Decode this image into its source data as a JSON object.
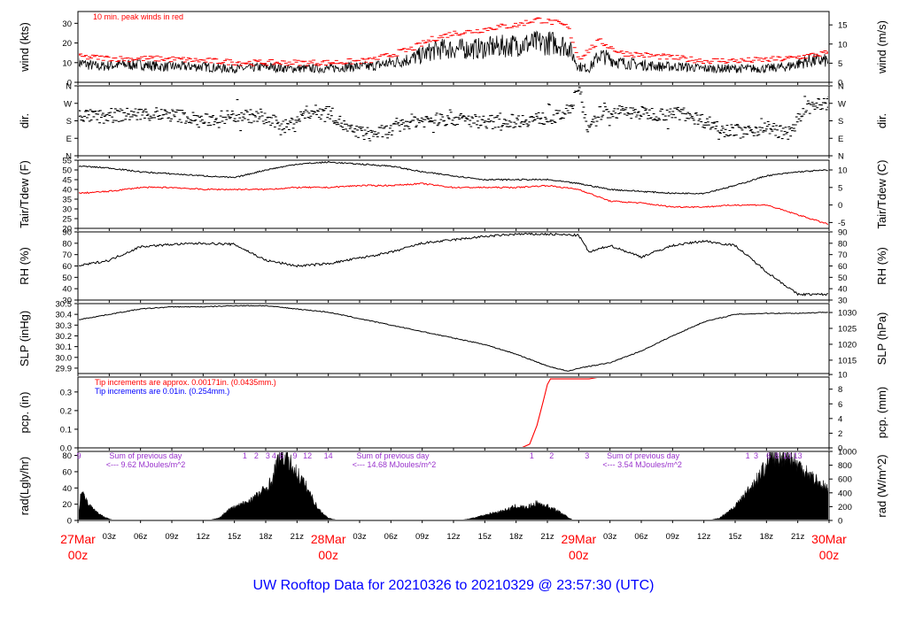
{
  "title": "UW Rooftop Data for 20210326  to  20210329 @ 23:57:30  (UTC)",
  "colors": {
    "black": "#000000",
    "red": "#ff0000",
    "blue": "#0000ff",
    "purple": "#9932cc"
  },
  "x_axis": {
    "hours": [
      0,
      3,
      6,
      9,
      12,
      15,
      18,
      21,
      24,
      27,
      30,
      33,
      36,
      39,
      42,
      45,
      48,
      51,
      54,
      57,
      60,
      63,
      66,
      69,
      72
    ],
    "labels": [
      "",
      "03z",
      "06z",
      "09z",
      "12z",
      "15z",
      "18z",
      "21z",
      "",
      "03z",
      "06z",
      "09z",
      "12z",
      "15z",
      "18z",
      "21z",
      "",
      "03z",
      "06z",
      "09z",
      "12z",
      "15z",
      "18z",
      "21z",
      ""
    ],
    "day_labels": [
      {
        "hour": 0,
        "day": "27Mar",
        "time": "00z"
      },
      {
        "hour": 24,
        "day": "28Mar",
        "time": "00z"
      },
      {
        "hour": 48,
        "day": "29Mar",
        "time": "00z"
      },
      {
        "hour": 72,
        "day": "30Mar",
        "time": "00z"
      }
    ],
    "range": [
      0,
      72
    ]
  },
  "chart_data": [
    {
      "id": "wind",
      "type": "line",
      "ylabel": "wind (kts)",
      "ylabel_right": "wind (m/s)",
      "ylim": [
        0,
        36
      ],
      "yticks": [
        0,
        10,
        20,
        30
      ],
      "right_ylim": [
        0,
        18.5
      ],
      "right_yticks": [
        0,
        5,
        10,
        15
      ],
      "note": "10 min. peak winds in red",
      "series": [
        {
          "name": "wind",
          "color": "#000000",
          "x": [
            0,
            2,
            4,
            6,
            8,
            10,
            12,
            14,
            16,
            18,
            20,
            22,
            24,
            26,
            28,
            30,
            32,
            34,
            35,
            36,
            38,
            40,
            42,
            44,
            46,
            47,
            48,
            49,
            50,
            52,
            54,
            56,
            58,
            60,
            62,
            64,
            66,
            68,
            70,
            72
          ],
          "y": [
            10,
            8,
            9,
            9,
            8,
            8,
            8,
            7,
            7,
            8,
            7,
            7,
            7,
            8,
            8,
            10,
            12,
            16,
            17,
            17,
            17,
            18,
            19,
            20,
            20,
            18,
            8,
            7,
            14,
            10,
            9,
            8,
            8,
            7,
            7,
            7,
            7,
            8,
            11,
            11
          ]
        },
        {
          "name": "10 min. peak winds",
          "color": "#ff0000",
          "x": [
            0,
            4,
            8,
            12,
            16,
            20,
            24,
            28,
            30,
            32,
            34,
            36,
            38,
            40,
            42,
            44,
            46,
            47,
            48,
            50,
            52,
            56,
            60,
            64,
            68,
            72
          ],
          "y": [
            13,
            12,
            12,
            11,
            10,
            10,
            10,
            11,
            14,
            17,
            22,
            25,
            26,
            28,
            29,
            32,
            30,
            28,
            12,
            21,
            15,
            13,
            11,
            11,
            12,
            15
          ]
        }
      ]
    },
    {
      "id": "dir",
      "type": "scatter",
      "ylabel": "dir.",
      "ylabel_right": "dir.",
      "ylim": [
        0,
        360
      ],
      "yticks": [
        0,
        90,
        180,
        270,
        360
      ],
      "ytick_labels": [
        "N",
        "E",
        "S",
        "W",
        "N"
      ],
      "series": [
        {
          "name": "dir",
          "color": "#000000",
          "x": [
            0,
            2,
            4,
            6,
            8,
            10,
            12,
            14,
            16,
            18,
            20,
            22,
            24,
            26,
            28,
            30,
            32,
            34,
            36,
            38,
            40,
            42,
            44,
            46,
            47,
            48,
            49,
            50,
            52,
            54,
            56,
            58,
            60,
            62,
            64,
            66,
            68,
            70,
            72
          ],
          "y": [
            210,
            200,
            210,
            215,
            210,
            205,
            180,
            200,
            210,
            190,
            150,
            225,
            230,
            130,
            110,
            130,
            180,
            185,
            190,
            180,
            175,
            180,
            190,
            200,
            230,
            350,
            120,
            220,
            225,
            220,
            215,
            220,
            180,
            140,
            120,
            150,
            110,
            250,
            270
          ]
        }
      ]
    },
    {
      "id": "temp",
      "type": "line",
      "ylabel": "Tair/Tdew (F)",
      "ylabel_right": "Tair/Tdew (C)",
      "ylim": [
        20,
        55
      ],
      "yticks": [
        20,
        25,
        30,
        35,
        40,
        45,
        50,
        55
      ],
      "right_ylim": [
        -6.67,
        12.78
      ],
      "right_yticks": [
        -5,
        0,
        5,
        10
      ],
      "series": [
        {
          "name": "Tair",
          "color": "#000000",
          "x": [
            0,
            3,
            6,
            9,
            12,
            15,
            18,
            21,
            24,
            27,
            30,
            33,
            36,
            39,
            42,
            45,
            48,
            51,
            54,
            57,
            60,
            63,
            66,
            69,
            72
          ],
          "y": [
            52,
            51,
            49,
            48,
            47,
            46,
            50,
            53,
            54,
            53,
            52,
            49,
            47,
            45,
            45,
            45,
            43,
            40,
            39,
            38,
            38,
            42,
            47,
            49,
            50
          ]
        },
        {
          "name": "Tdew",
          "color": "#ff0000",
          "x": [
            0,
            3,
            6,
            9,
            12,
            15,
            18,
            21,
            24,
            27,
            30,
            33,
            36,
            39,
            42,
            45,
            48,
            51,
            54,
            57,
            60,
            63,
            66,
            69,
            72
          ],
          "y": [
            38,
            39,
            41,
            41,
            40,
            40,
            40,
            41,
            41,
            42,
            42,
            43,
            41,
            41,
            41,
            42,
            40,
            34,
            33,
            31,
            31,
            32,
            32,
            27,
            22
          ]
        }
      ]
    },
    {
      "id": "rh",
      "type": "line",
      "ylabel": "RH (%)",
      "ylabel_right": "RH (%)",
      "ylim": [
        30,
        90
      ],
      "yticks": [
        30,
        40,
        50,
        60,
        70,
        80,
        90
      ],
      "series": [
        {
          "name": "RH",
          "color": "#000000",
          "x": [
            0,
            3,
            6,
            9,
            12,
            15,
            18,
            21,
            24,
            27,
            30,
            33,
            36,
            39,
            42,
            45,
            48,
            49,
            51,
            54,
            57,
            60,
            63,
            66,
            69,
            72
          ],
          "y": [
            60,
            65,
            77,
            79,
            80,
            79,
            65,
            60,
            62,
            67,
            72,
            80,
            83,
            86,
            88,
            88,
            87,
            72,
            78,
            68,
            78,
            82,
            78,
            55,
            35,
            35
          ]
        }
      ]
    },
    {
      "id": "slp",
      "type": "line",
      "ylabel": "SLP (inHg)",
      "ylabel_right": "SLP (hPa)",
      "ylim": [
        29.85,
        30.5
      ],
      "yticks": [
        29.9,
        30.0,
        30.1,
        30.2,
        30.3,
        30.4,
        30.5
      ],
      "ytick_labels": [
        "29.9",
        "30.0",
        "30.1",
        "30.2",
        "30.3",
        "30.4",
        "30.5"
      ],
      "right_ylim": [
        1010.8,
        1032.8
      ],
      "right_yticks": [
        1015,
        1020,
        1025,
        1030
      ],
      "series": [
        {
          "name": "SLP",
          "color": "#000000",
          "x": [
            0,
            3,
            6,
            9,
            12,
            15,
            18,
            21,
            24,
            27,
            30,
            33,
            36,
            39,
            42,
            45,
            47,
            48,
            51,
            54,
            57,
            60,
            63,
            66,
            69,
            72
          ],
          "y": [
            30.35,
            30.4,
            30.45,
            30.47,
            30.47,
            30.48,
            30.48,
            30.45,
            30.42,
            30.36,
            30.3,
            30.24,
            30.18,
            30.12,
            30.03,
            29.92,
            29.87,
            29.9,
            29.95,
            30.06,
            30.2,
            30.33,
            30.4,
            30.41,
            30.41,
            30.42
          ]
        }
      ]
    },
    {
      "id": "pcp",
      "type": "line",
      "ylabel": "pcp. (in)",
      "ylabel_right": "pcp. (mm)",
      "ylim": [
        0,
        0.38
      ],
      "yticks": [
        0.0,
        0.1,
        0.2,
        0.3
      ],
      "ytick_labels": [
        "0.0",
        "0.1",
        "0.2",
        "0.3"
      ],
      "right_ylim": [
        0,
        9.65
      ],
      "right_yticks": [
        0,
        2,
        4,
        6,
        8,
        10
      ],
      "note_red": "Tip increments are approx. 0.00171in. (0.0435mm.)",
      "note_blue": "Tip increments are 0.01in. (0.254mm.)",
      "series": [
        {
          "name": "pcp",
          "color": "#ff0000",
          "x": [
            0,
            42.5,
            43.3,
            44,
            44.6,
            45,
            45.3,
            49,
            50,
            72
          ],
          "y": [
            0,
            0,
            0.02,
            0.12,
            0.25,
            0.34,
            0.37,
            0.37,
            0.38,
            0.38
          ]
        }
      ]
    },
    {
      "id": "rad",
      "type": "area",
      "ylabel": "rad(Lgly/hr)",
      "ylabel_right": "rad (W/m^2)",
      "ylim": [
        0,
        85
      ],
      "yticks": [
        0,
        20,
        40,
        60,
        80
      ],
      "right_ylim": [
        0,
        1000
      ],
      "right_yticks": [
        0,
        200,
        400,
        600,
        800,
        1000
      ],
      "series": [
        {
          "name": "rad",
          "color": "#000000",
          "x": [
            0,
            0.3,
            1,
            2,
            3,
            3.5,
            12.5,
            13.5,
            14.5,
            16,
            17,
            18,
            18.7,
            19,
            19.5,
            20,
            21,
            22,
            23,
            24,
            25,
            26,
            36.5,
            37.5,
            39,
            41,
            42,
            43,
            44,
            45,
            46,
            47,
            47.5,
            60.5,
            61.5,
            63,
            65,
            66,
            66.5,
            67,
            68,
            69,
            70,
            71,
            72
          ],
          "y": [
            0,
            38,
            20,
            8,
            2,
            0,
            0,
            3,
            14,
            22,
            30,
            40,
            52,
            70,
            83,
            78,
            60,
            40,
            15,
            3,
            0,
            0,
            0,
            2,
            7,
            13,
            18,
            16,
            22,
            18,
            12,
            4,
            0,
            0,
            3,
            18,
            50,
            70,
            83,
            75,
            84,
            70,
            60,
            48,
            38
          ]
        }
      ],
      "annotations": [
        {
          "text": "Sum of previous day",
          "hour": 3.0
        },
        {
          "text": "<--- 9.62 MJoules/m^2",
          "hour": 2.7
        },
        {
          "text": "Sum of previous day",
          "hour": 26.7
        },
        {
          "text": "<--- 14.68 MJoules/m^2",
          "hour": 26.3
        },
        {
          "text": "Sum of previous day",
          "hour": 50.7
        },
        {
          "text": "<--- 3.54 MJoules/m^2",
          "hour": 50.3
        }
      ],
      "hour_markers": [
        {
          "text": "9",
          "hour": 0.1
        },
        {
          "text": "1",
          "hour": 16.0
        },
        {
          "text": "2",
          "hour": 17.1
        },
        {
          "text": "3",
          "hour": 18.2
        },
        {
          "text": "4",
          "hour": 18.8
        },
        {
          "text": "6",
          "hour": 19.5
        },
        {
          "text": "9",
          "hour": 20.8
        },
        {
          "text": "12",
          "hour": 22.0
        },
        {
          "text": "14",
          "hour": 24.0
        },
        {
          "text": "1",
          "hour": 43.5
        },
        {
          "text": "2",
          "hour": 45.4
        },
        {
          "text": "3",
          "hour": 48.8
        },
        {
          "text": "1",
          "hour": 64.2
        },
        {
          "text": "3",
          "hour": 65.0
        },
        {
          "text": "6",
          "hour": 66.2
        },
        {
          "text": "8",
          "hour": 67.0
        },
        {
          "text": "10",
          "hour": 68.0
        },
        {
          "text": "13",
          "hour": 69.0
        }
      ]
    }
  ]
}
